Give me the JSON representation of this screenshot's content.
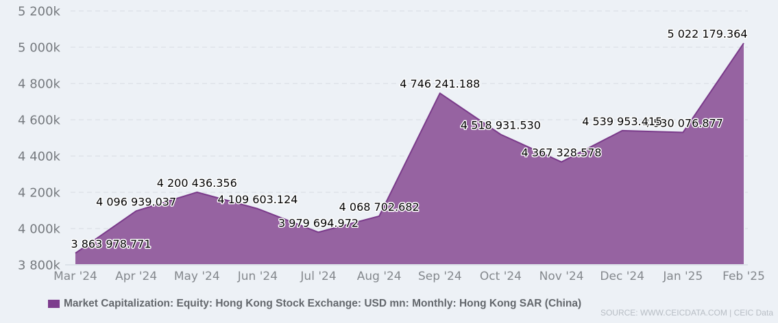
{
  "legend": {
    "label": "Market Capitalization: Equity: Hong Kong Stock Exchange: USD mn: Monthly: Hong Kong SAR (China)"
  },
  "source": {
    "text": "SOURCE: WWW.CEICDATA.COM | CEIC Data"
  },
  "chart_data": {
    "type": "area",
    "title": "",
    "xlabel": "",
    "ylabel": "",
    "series_name": "Market Capitalization: Equity: Hong Kong Stock Exchange: USD mn: Monthly: Hong Kong SAR (China)",
    "categories": [
      "Mar '24",
      "Apr '24",
      "May '24",
      "Jun '24",
      "Jul '24",
      "Aug '24",
      "Sep '24",
      "Oct '24",
      "Nov '24",
      "Dec '24",
      "Jan '25",
      "Feb '25"
    ],
    "values": [
      3863978.771,
      4096939.037,
      4200436.356,
      4109603.124,
      3979694.972,
      4068702.682,
      4746241.188,
      4518931.53,
      4367328.578,
      4539953.415,
      4530076.877,
      5022179.364
    ],
    "point_labels": [
      "3 863 978.771",
      "4 096 939.037",
      "4 200 436.356",
      "4 109 603.124",
      "3 979 694.972",
      "4 068 702.682",
      "4 746 241.188",
      "4 518 931.530",
      "4 367 328.578",
      "4 539 953.415",
      "4 530 076.877",
      "5 022 179.364"
    ],
    "ylim": [
      3800000,
      5200000
    ],
    "y_ticks": [
      {
        "label": "5 200k",
        "value": 5200000
      },
      {
        "label": "5 000k",
        "value": 5000000
      },
      {
        "label": "4 800k",
        "value": 4800000
      },
      {
        "label": "4 600k",
        "value": 4600000
      },
      {
        "label": "4 400k",
        "value": 4400000
      },
      {
        "label": "4 200k",
        "value": 4200000
      },
      {
        "label": "4 000k",
        "value": 4000000
      },
      {
        "label": "3 800k",
        "value": 3800000
      }
    ],
    "grid": "dashed-horizontal",
    "legend_position": "bottom-left",
    "colors": {
      "background": "#edf1f6",
      "area_fill": "#9663a1",
      "area_line": "#7a3a8a",
      "legend_marker": "#7d3c8d",
      "gridline": "#d7dce2",
      "axis_line": "#ccd2d9",
      "y_tick_text": "#75797e",
      "x_tick_text": "#83878c",
      "data_label": "#000000",
      "legend_text": "#63676c",
      "source_text": "#b7bdc4"
    }
  }
}
